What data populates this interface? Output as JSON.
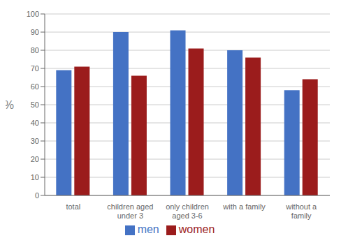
{
  "chart_data": {
    "type": "bar",
    "categories": [
      "total",
      "children aged\nunder 3",
      "only children\naged 3-6",
      "with a family",
      "without a\nfamily"
    ],
    "series": [
      {
        "name": "men",
        "color": "#4472C4",
        "values": [
          69,
          90,
          91,
          80,
          58
        ]
      },
      {
        "name": "women",
        "color": "#9B1C1C",
        "values": [
          71,
          66,
          81,
          76,
          64
        ]
      }
    ],
    "ylabel": "%",
    "ylim": [
      0,
      100
    ],
    "yticks": [
      0,
      10,
      20,
      30,
      40,
      50,
      60,
      70,
      80,
      90,
      100
    ],
    "grid": true,
    "legend": "bottom"
  }
}
